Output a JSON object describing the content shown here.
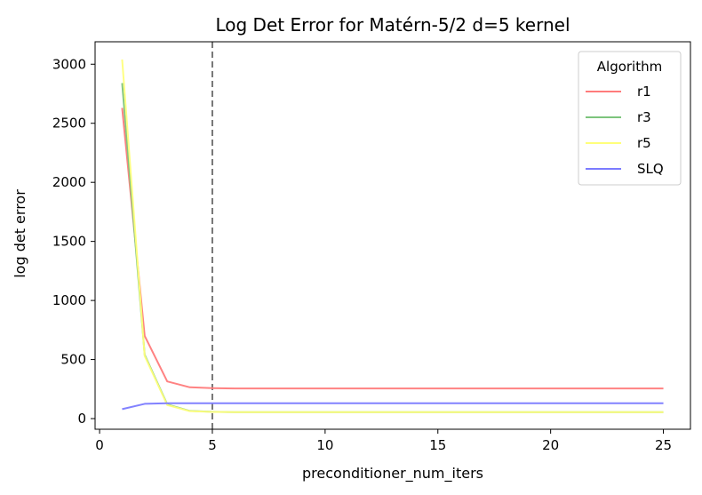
{
  "chart_data": {
    "type": "line",
    "title": "Log Det Error for Matérn-5/2 d=5 kernel",
    "xlabel": "preconditioner_num_iters",
    "ylabel": "log det error",
    "xlim": [
      -0.2,
      26.2
    ],
    "ylim": [
      -90,
      3190
    ],
    "xticks": [
      0,
      5,
      10,
      15,
      20,
      25
    ],
    "xtick_labels": [
      "0",
      "5",
      "10",
      "15",
      "20",
      "25"
    ],
    "yticks": [
      0,
      500,
      1000,
      1500,
      2000,
      2500,
      3000
    ],
    "ytick_labels": [
      "0",
      "500",
      "1000",
      "1500",
      "2000",
      "2500",
      "3000"
    ],
    "grid": false,
    "vline": {
      "x": 5,
      "style": "dashed",
      "color": "#777777"
    },
    "legend": {
      "title": "Algorithm",
      "placement": "top-right"
    },
    "x": [
      1,
      2,
      3,
      4,
      5,
      6,
      7,
      8,
      9,
      10,
      11,
      12,
      13,
      14,
      15,
      16,
      17,
      18,
      19,
      20,
      21,
      22,
      23,
      24,
      25
    ],
    "series": [
      {
        "name": "r1",
        "color": "#ff7b7b",
        "values": [
          2630,
          700,
          315,
          265,
          258,
          255,
          255,
          255,
          255,
          255,
          255,
          255,
          255,
          255,
          255,
          255,
          255,
          255,
          255,
          255,
          255,
          255,
          255,
          255,
          255
        ]
      },
      {
        "name": "r3",
        "color": "#7cc47c",
        "values": [
          2840,
          540,
          120,
          65,
          58,
          55,
          55,
          55,
          55,
          55,
          55,
          55,
          55,
          55,
          55,
          55,
          55,
          55,
          55,
          55,
          55,
          55,
          55,
          55,
          55
        ]
      },
      {
        "name": "r5",
        "color": "#ffff7b",
        "values": [
          3040,
          530,
          115,
          63,
          57,
          55,
          55,
          55,
          55,
          55,
          55,
          55,
          55,
          55,
          55,
          55,
          55,
          55,
          55,
          55,
          55,
          55,
          55,
          55,
          55
        ]
      },
      {
        "name": "SLQ",
        "color": "#7b7bff",
        "values": [
          80,
          125,
          130,
          130,
          130,
          130,
          130,
          130,
          130,
          130,
          130,
          130,
          130,
          130,
          130,
          130,
          130,
          130,
          130,
          130,
          130,
          130,
          130,
          130,
          130
        ]
      }
    ]
  }
}
